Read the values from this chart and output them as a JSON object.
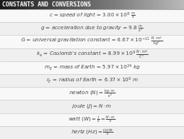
{
  "title": "CONSTANTS AND CONVERSIONS",
  "title_bg_left": "#1a1a1a",
  "title_bg_right": "#aaaaaa",
  "title_color": "#ffffff",
  "bg_color": "#d8d8d8",
  "row_bg": "#f2f2f2",
  "divider_color": "#bbbbbb",
  "text_color": "#444444",
  "rows": [
    {
      "text": "$c$ = speed of light = $3.00 \\times 10^8\\ \\frac{m}{s}$"
    },
    {
      "text": "$g$ = acceleration due to gravity = $9.8\\ \\frac{m}{s^2}$"
    },
    {
      "text": "$G$ = universal gravitation constant = $6.67 \\times 10^{-11}\\ \\frac{N \\cdot m^2}{kg^2}$"
    },
    {
      "text": "$k_e$ = Coulomb's constant = $8.99 \\times 10^9\\ \\frac{N \\cdot m^2}{C^2}$"
    },
    {
      "text": "$m_E$ = mass of Earth = $5.97 \\times 10^{24}$ kg"
    },
    {
      "text": "$r_E$ = radius of Earth = $6.37 \\times 10^6$ m"
    },
    {
      "text": "newton $(N) = \\frac{kg \\cdot m}{s^2}$"
    },
    {
      "text": "joule $(J) = N \\cdot m$"
    },
    {
      "text": "watt $(W) = \\frac{J}{s} = \\frac{N \\cdot m}{s}$"
    },
    {
      "text": "hertz $(Hz) = \\frac{cycle}{s}$"
    }
  ],
  "font_size": 5.2,
  "title_font_size": 6.0
}
